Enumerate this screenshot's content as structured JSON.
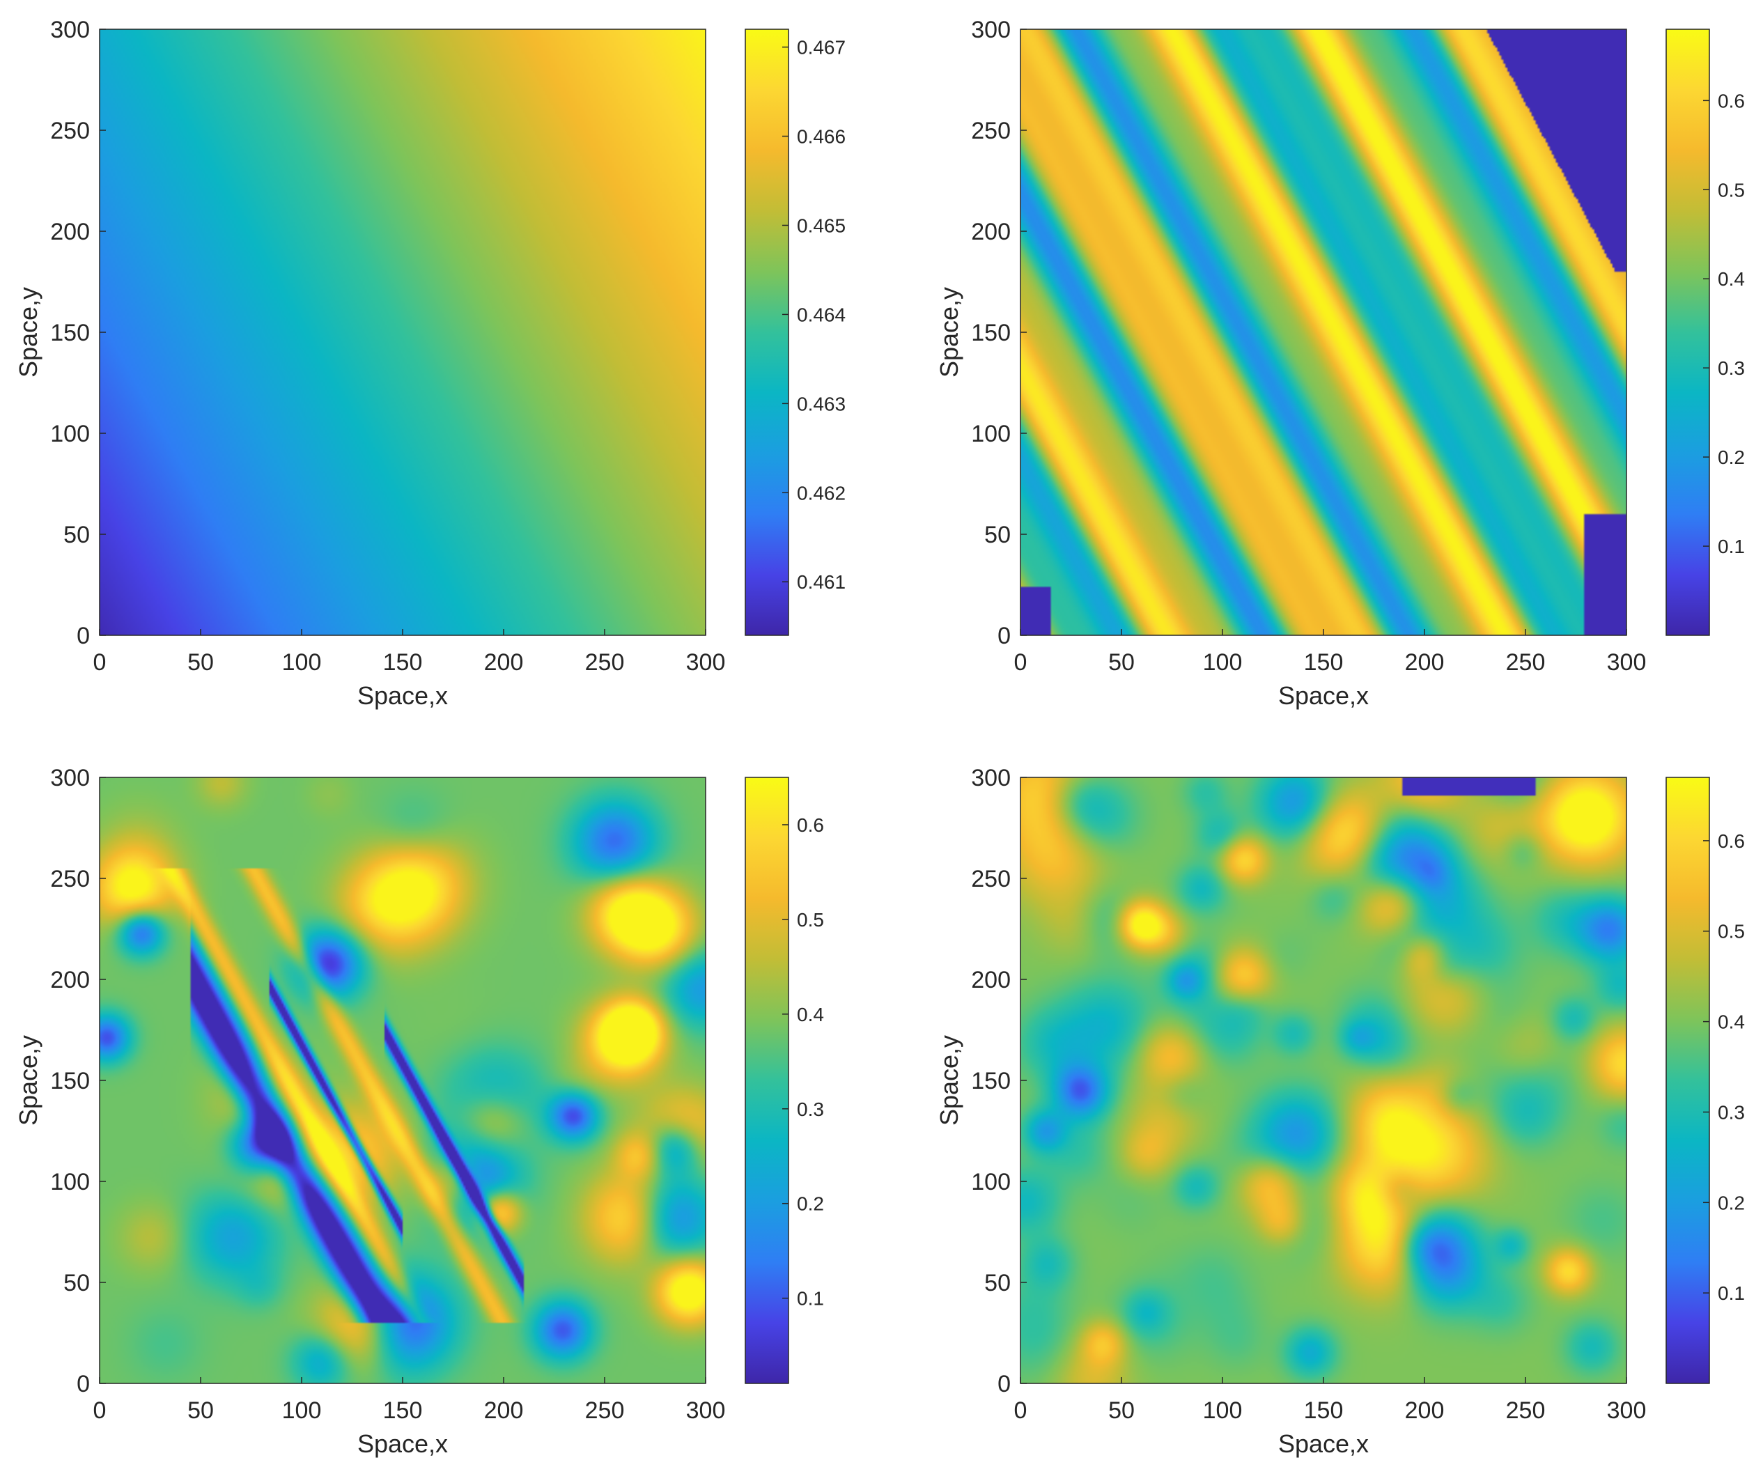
{
  "colormap": [
    "#3e26a8",
    "#4743e6",
    "#2f7ef4",
    "#1b9ee0",
    "#0bb6c4",
    "#33c19b",
    "#7ec45a",
    "#c2bd36",
    "#f5ba2d",
    "#fcd732",
    "#f9fb15"
  ],
  "chart_data": [
    {
      "type": "heatmap",
      "pattern": "linear-gradient",
      "xlabel": "Space,x",
      "ylabel": "Space,y",
      "xlim": [
        0,
        300
      ],
      "ylim": [
        0,
        300
      ],
      "xticks": [
        "0",
        "50",
        "100",
        "150",
        "200",
        "250",
        "300"
      ],
      "yticks": [
        "0",
        "50",
        "100",
        "150",
        "200",
        "250",
        "300"
      ],
      "clim": [
        0.4604,
        0.4672
      ],
      "colorbar_ticks": [
        {
          "value": 0.461,
          "label": "0.461"
        },
        {
          "value": 0.462,
          "label": "0.462"
        },
        {
          "value": 0.463,
          "label": "0.463"
        },
        {
          "value": 0.464,
          "label": "0.464"
        },
        {
          "value": 0.465,
          "label": "0.465"
        },
        {
          "value": 0.466,
          "label": "0.466"
        },
        {
          "value": 0.467,
          "label": "0.467"
        }
      ]
    },
    {
      "type": "heatmap",
      "pattern": "diagonal-stripes",
      "xlabel": "Space,x",
      "ylabel": "Space,y",
      "xlim": [
        0,
        300
      ],
      "ylim": [
        0,
        300
      ],
      "xticks": [
        "0",
        "50",
        "100",
        "150",
        "200",
        "250",
        "300"
      ],
      "yticks": [
        "0",
        "50",
        "100",
        "150",
        "200",
        "250",
        "300"
      ],
      "clim": [
        0.0,
        0.68
      ],
      "colorbar_ticks": [
        {
          "value": 0.1,
          "label": "0.1"
        },
        {
          "value": 0.2,
          "label": "0.2"
        },
        {
          "value": 0.3,
          "label": "0.3"
        },
        {
          "value": 0.4,
          "label": "0.4"
        },
        {
          "value": 0.5,
          "label": "0.5"
        },
        {
          "value": 0.6,
          "label": "0.6"
        }
      ]
    },
    {
      "type": "heatmap",
      "pattern": "stripes-and-spots",
      "xlabel": "Space,x",
      "ylabel": "Space,y",
      "xlim": [
        0,
        300
      ],
      "ylim": [
        0,
        300
      ],
      "xticks": [
        "0",
        "50",
        "100",
        "150",
        "200",
        "250",
        "300"
      ],
      "yticks": [
        "0",
        "50",
        "100",
        "150",
        "200",
        "250",
        "300"
      ],
      "clim": [
        0.01,
        0.65
      ],
      "colorbar_ticks": [
        {
          "value": 0.1,
          "label": "0.1"
        },
        {
          "value": 0.2,
          "label": "0.2"
        },
        {
          "value": 0.3,
          "label": "0.3"
        },
        {
          "value": 0.4,
          "label": "0.4"
        },
        {
          "value": 0.5,
          "label": "0.5"
        },
        {
          "value": 0.6,
          "label": "0.6"
        }
      ]
    },
    {
      "type": "heatmap",
      "pattern": "spots",
      "xlabel": "Space,x",
      "ylabel": "Space,y",
      "xlim": [
        0,
        300
      ],
      "ylim": [
        0,
        300
      ],
      "xticks": [
        "0",
        "50",
        "100",
        "150",
        "200",
        "250",
        "300"
      ],
      "yticks": [
        "0",
        "50",
        "100",
        "150",
        "200",
        "250",
        "300"
      ],
      "clim": [
        0.0,
        0.67
      ],
      "colorbar_ticks": [
        {
          "value": 0.1,
          "label": "0.1"
        },
        {
          "value": 0.2,
          "label": "0.2"
        },
        {
          "value": 0.3,
          "label": "0.3"
        },
        {
          "value": 0.4,
          "label": "0.4"
        },
        {
          "value": 0.5,
          "label": "0.5"
        },
        {
          "value": 0.6,
          "label": "0.6"
        }
      ]
    }
  ]
}
